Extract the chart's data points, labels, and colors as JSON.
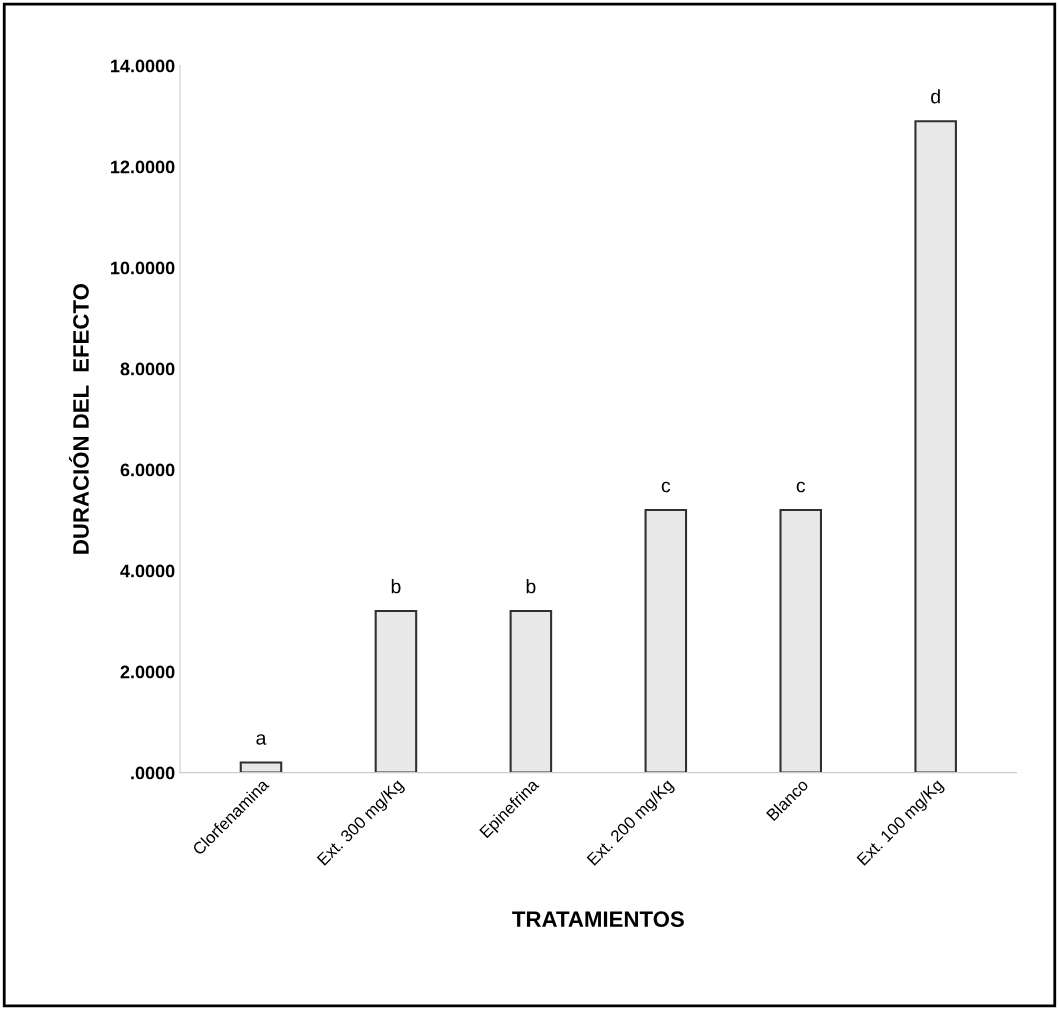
{
  "chart_data": {
    "type": "bar",
    "xlabel": "TRATAMIENTOS",
    "ylabel": "DURACIÓN DEL  EFECTO",
    "categories": [
      "Clorfenamina",
      "Ext. 300 mg/Kg",
      "Epinefrina",
      "Ext. 200 mg/Kg",
      "Blanco",
      "Ext. 100 mg/Kg"
    ],
    "values": [
      0.2,
      3.2,
      3.2,
      5.2,
      5.2,
      12.9
    ],
    "color": "#e8e8e8",
    "ylim": [
      0,
      14
    ],
    "yticks": [
      {
        "value": 0,
        "label": ".0000"
      },
      {
        "value": 2,
        "label": "2.0000"
      },
      {
        "value": 4,
        "label": "4.0000"
      },
      {
        "value": 6,
        "label": "6.0000"
      },
      {
        "value": 8,
        "label": "8.0000"
      },
      {
        "value": 10,
        "label": "10.0000"
      },
      {
        "value": 12,
        "label": "12.0000"
      },
      {
        "value": 14,
        "label": "14.0000"
      }
    ],
    "annotations": [
      {
        "text": "a",
        "x": "Clorfenamina",
        "y": 0.2
      },
      {
        "text": "b",
        "x": "Ext. 300 mg/Kg",
        "y": 3.2
      },
      {
        "text": "b",
        "x": "Epinefrina",
        "y": 3.2
      },
      {
        "text": "c",
        "x": "Ext. 200 mg/Kg",
        "y": 5.2
      },
      {
        "text": "c",
        "x": "Blanco",
        "y": 5.2
      },
      {
        "text": "d",
        "x": "Ext. 100 mg/Kg",
        "y": 12.9
      }
    ],
    "grid": false,
    "legend": false
  }
}
